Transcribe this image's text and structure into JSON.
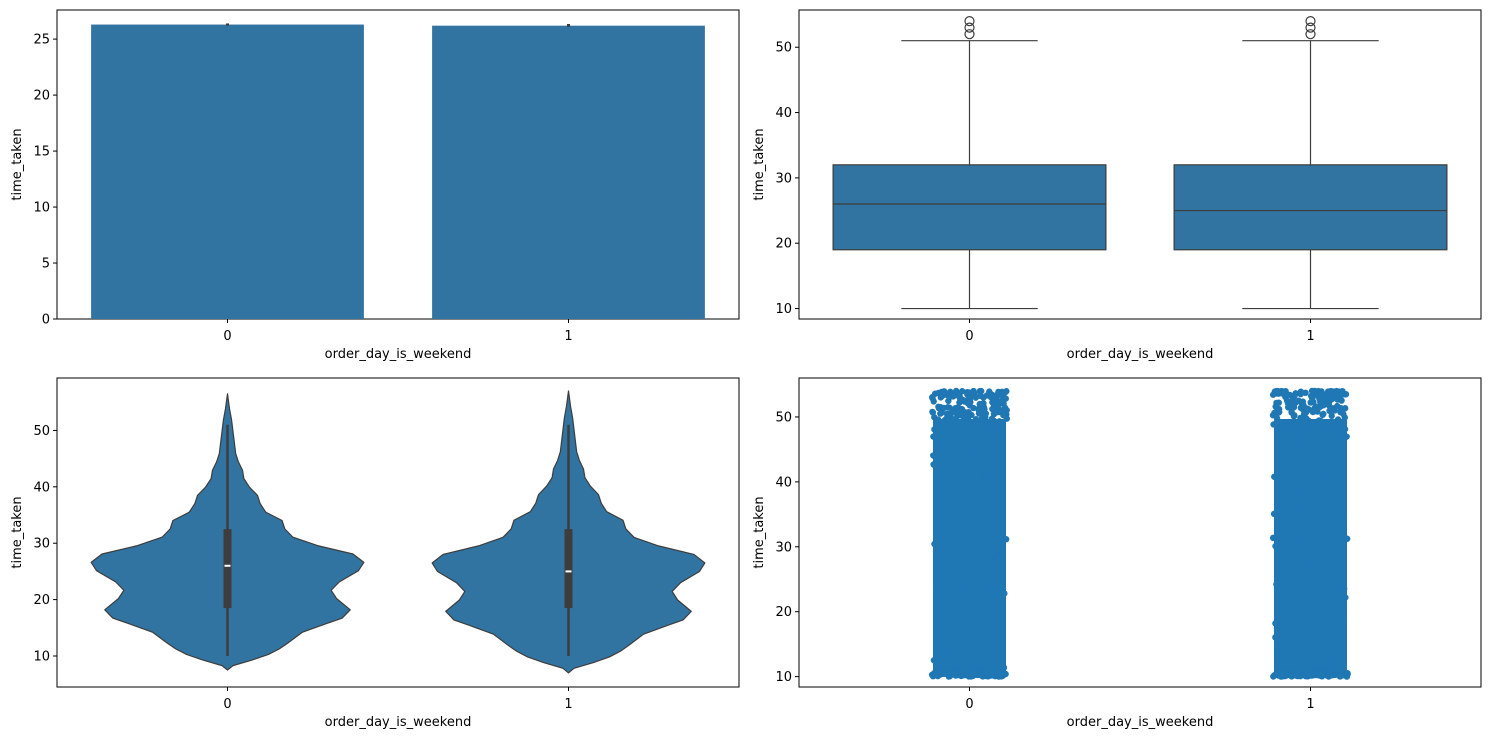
{
  "colors": {
    "fill": "#3274a1",
    "fill_strip": "#1f77b4",
    "line": "#3d3d3d",
    "edge": "#000000"
  },
  "chart_data": [
    {
      "type": "bar",
      "categories": [
        "0",
        "1"
      ],
      "values": [
        26.3,
        26.2
      ],
      "error_bars": [
        [
          26.2,
          26.4
        ],
        [
          26.1,
          26.35
        ]
      ],
      "xlabel": "order_day_is_weekend",
      "ylabel": "time_taken",
      "ylim": [
        0,
        27.6
      ],
      "yticks": [
        0,
        5,
        10,
        15,
        20,
        25
      ],
      "grid": false
    },
    {
      "type": "box",
      "categories": [
        "0",
        "1"
      ],
      "boxes": [
        {
          "whisker_low": 10,
          "q1": 19,
          "median": 26,
          "q3": 32,
          "whisker_high": 51,
          "outliers": [
            52,
            53,
            54
          ]
        },
        {
          "whisker_low": 10,
          "q1": 19,
          "median": 25,
          "q3": 32,
          "whisker_high": 51,
          "outliers": [
            52,
            53,
            54
          ]
        }
      ],
      "xlabel": "order_day_is_weekend",
      "ylabel": "time_taken",
      "ylim": [
        8.4,
        55.7
      ],
      "yticks": [
        10,
        20,
        30,
        40,
        50
      ],
      "grid": false
    },
    {
      "type": "violin",
      "categories": [
        "0",
        "1"
      ],
      "violins": [
        {
          "min": 7.5,
          "max": 56.5,
          "q1": 18.5,
          "median": 26,
          "q3": 32.5,
          "whisker_low": 10,
          "whisker_high": 51
        },
        {
          "min": 7,
          "max": 57,
          "q1": 18.5,
          "median": 25,
          "q3": 32.5,
          "whisker_low": 10,
          "whisker_high": 51
        }
      ],
      "xlabel": "order_day_is_weekend",
      "ylabel": "time_taken",
      "ylim": [
        4.5,
        59.3
      ],
      "yticks": [
        10,
        20,
        30,
        40,
        50
      ],
      "grid": false
    },
    {
      "type": "strip",
      "categories": [
        "0",
        "1"
      ],
      "ranges": [
        [
          10,
          54
        ],
        [
          10,
          54
        ]
      ],
      "xlabel": "order_day_is_weekend",
      "ylabel": "time_taken",
      "ylim": [
        8.4,
        56
      ],
      "yticks": [
        10,
        20,
        30,
        40,
        50
      ],
      "grid": false
    }
  ]
}
